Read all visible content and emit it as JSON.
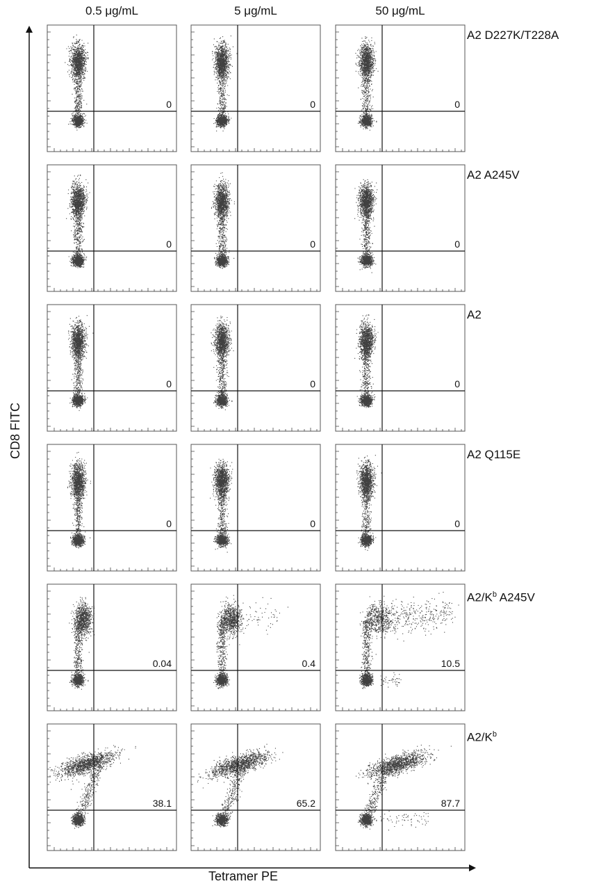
{
  "chart_data": {
    "type": "scatter",
    "xlabel": "Tetramer PE",
    "ylabel": "CD8 FITC",
    "columns": [
      "0.5 μg/mL",
      "5 μg/mL",
      "50 μg/mL"
    ],
    "rows": [
      {
        "label": "A2 D227K/T228A",
        "label_base": "A2 D227K/T228A",
        "label_sup": "",
        "label_tail": "",
        "values": [
          "0",
          "0",
          "0"
        ]
      },
      {
        "label": "A2 A245V",
        "label_base": "A2 A245V",
        "label_sup": "",
        "label_tail": "",
        "values": [
          "0",
          "0",
          "0"
        ]
      },
      {
        "label": "A2",
        "label_base": "A2",
        "label_sup": "",
        "label_tail": "",
        "values": [
          "0",
          "0",
          "0"
        ]
      },
      {
        "label": "A2 Q115E",
        "label_base": "A2 Q115E",
        "label_sup": "",
        "label_tail": "",
        "values": [
          "0",
          "0",
          "0"
        ]
      },
      {
        "label": "A2/Kb A245V",
        "label_base": "A2/K",
        "label_sup": "b",
        "label_tail": " A245V",
        "values": [
          "0.04",
          "0.4",
          "10.5"
        ]
      },
      {
        "label": "A2/Kb",
        "label_base": "A2/K",
        "label_sup": "b",
        "label_tail": "",
        "values": [
          "38.1",
          "65.2",
          "87.7"
        ]
      }
    ],
    "quadrant_value_position": "upper-right",
    "grid": false,
    "legend": "none"
  },
  "colors": {
    "ink": "#111111",
    "dots": "#000000",
    "frame": "#555555"
  }
}
